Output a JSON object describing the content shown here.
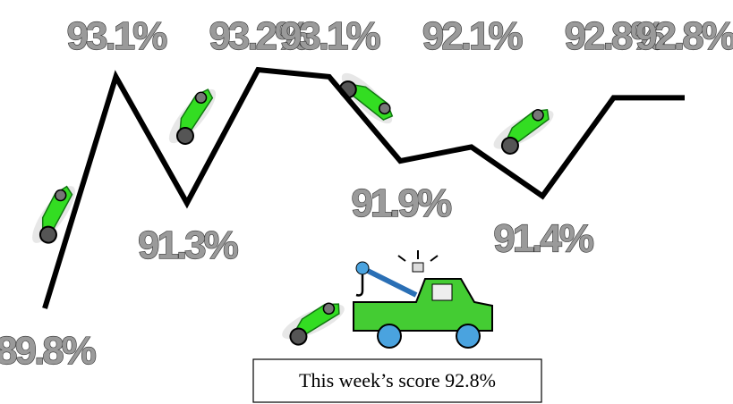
{
  "chart_data": {
    "type": "line",
    "values": [
      89.8,
      93.1,
      91.3,
      93.2,
      93.1,
      91.9,
      92.1,
      91.4,
      92.8,
      92.8
    ],
    "value_labels": [
      "89.8%",
      "93.1%",
      "91.3%",
      "93.2%",
      "93.1%",
      "91.9%",
      "92.1%",
      "91.4%",
      "92.8%",
      "92.8%"
    ],
    "color": "#000000",
    "caption": "This week’s score 92.8%"
  }
}
